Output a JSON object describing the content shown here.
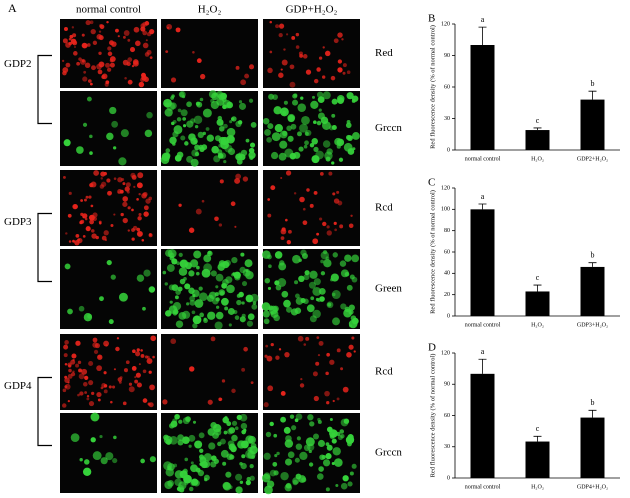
{
  "panel_a": {
    "label": "A",
    "column_headers": [
      "normal control",
      "H₂O₂",
      "GDP+H₂O₂"
    ],
    "groups": [
      {
        "label": "GDP2",
        "rows": [
          "Red",
          "Grccn"
        ]
      },
      {
        "label": "GDP3",
        "rows": [
          "Rcd",
          "Green"
        ]
      },
      {
        "label": "GDP4",
        "rows": [
          "Rcd",
          "Grccn"
        ]
      }
    ]
  },
  "chart_data": [
    {
      "type": "bar",
      "panel_label": "B",
      "ylabel": "Red fluorescence density (% of normal control)",
      "categories": [
        "normal control",
        "H₂O₂",
        "GDP2+H₂O₂"
      ],
      "values": [
        100,
        19,
        48
      ],
      "errors": [
        17,
        2,
        8
      ],
      "annotations": [
        "a",
        "c",
        "b"
      ],
      "color": "#000000",
      "ylim": [
        0,
        120
      ],
      "yticks": [
        0,
        30,
        60,
        90,
        120
      ]
    },
    {
      "type": "bar",
      "panel_label": "C",
      "ylabel": "Red fluorescence density (% of normal control)",
      "categories": [
        "normal control",
        "H₂O₂",
        "GDP3+H₂O₂"
      ],
      "values": [
        100,
        23,
        46
      ],
      "errors": [
        5,
        6,
        4
      ],
      "annotations": [
        "a",
        "c",
        "b"
      ],
      "color": "#000000",
      "ylim": [
        0,
        120
      ],
      "yticks": [
        0,
        20,
        40,
        60,
        80,
        100,
        120
      ]
    },
    {
      "type": "bar",
      "panel_label": "D",
      "ylabel": "Red fluorescence density (% of normal control)",
      "categories": [
        "normal control",
        "H₂O₂",
        "GDP4+H₂O₂"
      ],
      "values": [
        100,
        35,
        58
      ],
      "errors": [
        14,
        5,
        7
      ],
      "annotations": [
        "a",
        "c",
        "b"
      ],
      "color": "#000000",
      "ylim": [
        0,
        120
      ],
      "yticks": [
        0,
        30,
        60,
        90,
        120
      ]
    }
  ]
}
